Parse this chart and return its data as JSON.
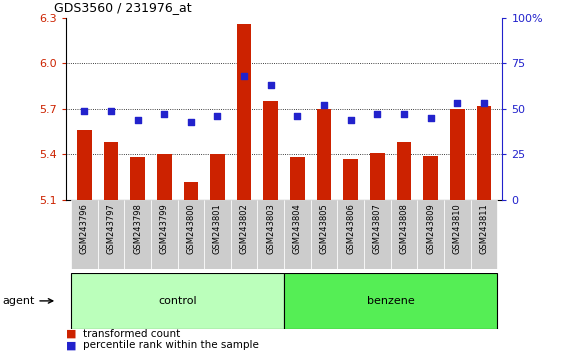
{
  "title": "GDS3560 / 231976_at",
  "samples": [
    "GSM243796",
    "GSM243797",
    "GSM243798",
    "GSM243799",
    "GSM243800",
    "GSM243801",
    "GSM243802",
    "GSM243803",
    "GSM243804",
    "GSM243805",
    "GSM243806",
    "GSM243807",
    "GSM243808",
    "GSM243809",
    "GSM243810",
    "GSM243811"
  ],
  "transformed_count": [
    5.56,
    5.48,
    5.38,
    5.4,
    5.22,
    5.4,
    6.26,
    5.75,
    5.38,
    5.7,
    5.37,
    5.41,
    5.48,
    5.39,
    5.7,
    5.72
  ],
  "percentile_rank": [
    49,
    49,
    44,
    47,
    43,
    46,
    68,
    63,
    46,
    52,
    44,
    47,
    47,
    45,
    53,
    53
  ],
  "control_count": 8,
  "ylim_left": [
    5.1,
    6.3
  ],
  "ylim_right": [
    0,
    100
  ],
  "yticks_left": [
    5.1,
    5.4,
    5.7,
    6.0,
    6.3
  ],
  "yticks_right": [
    0,
    25,
    50,
    75,
    100
  ],
  "ytick_labels_right": [
    "0",
    "25",
    "50",
    "75",
    "100%"
  ],
  "bar_color": "#cc2200",
  "dot_color": "#2222cc",
  "control_color": "#bbffbb",
  "benzene_color": "#55ee55",
  "xlabel_area_color": "#cccccc",
  "grid_values": [
    5.4,
    5.7,
    6.0
  ],
  "legend_labels": [
    "transformed count",
    "percentile rank within the sample"
  ],
  "agent_label": "agent",
  "group_labels": [
    "control",
    "benzene"
  ]
}
